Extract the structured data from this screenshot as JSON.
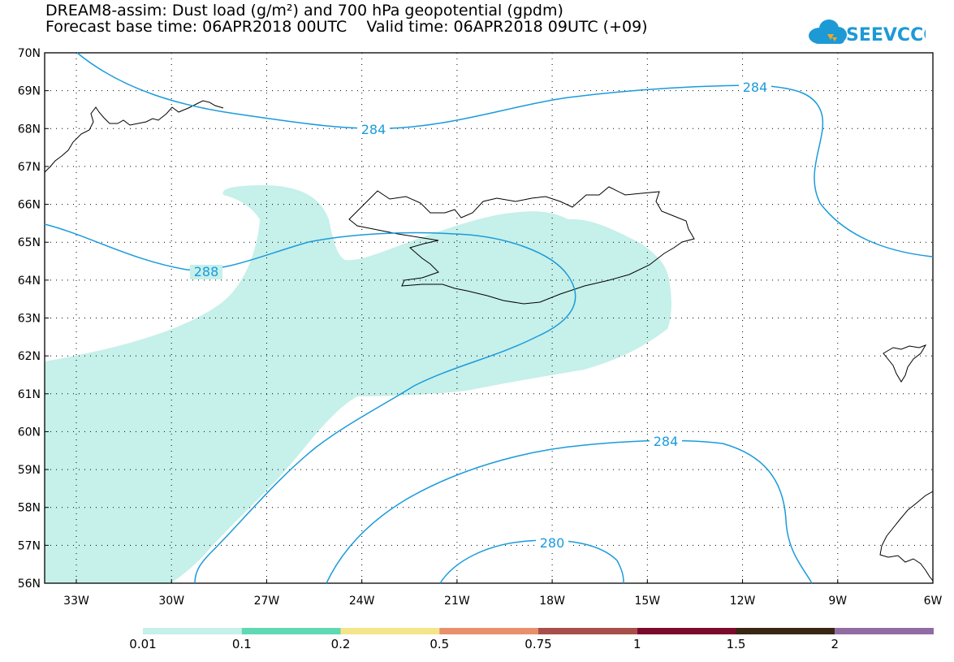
{
  "title": {
    "line1": "DREAM8-assim: Dust load (g/m²) and 700 hPa geopotential (gpdm)",
    "line2": "Forecast base time: 06APR2018 00UTC    Valid time: 06APR2018 09UTC (+09)"
  },
  "logo": {
    "text": "SEEVCCC",
    "color": "#1d9ad6"
  },
  "map": {
    "lat_labels": [
      "70N",
      "69N",
      "68N",
      "67N",
      "66N",
      "65N",
      "64N",
      "63N",
      "62N",
      "61N",
      "60N",
      "59N",
      "58N",
      "57N",
      "56N"
    ],
    "lon_labels": [
      "33W",
      "30W",
      "27W",
      "24W",
      "21W",
      "18W",
      "15W",
      "12W",
      "9W",
      "6W"
    ],
    "contour_labels": [
      "284",
      "284",
      "288",
      "284",
      "280"
    ],
    "contour_color": "#1a9bdc",
    "dust_fill_color": "#c6f0ea",
    "coast_color": "#000000"
  },
  "legend": {
    "labels": [
      "0.01",
      "0.1",
      "0.2",
      "0.5",
      "0.75",
      "1",
      "1.5",
      "2"
    ],
    "colors": [
      "#c6f0ea",
      "#5fd9b4",
      "#f5e58a",
      "#e8906c",
      "#a84f49",
      "#7c0a2c",
      "#3a2614",
      "#916ca4"
    ]
  }
}
